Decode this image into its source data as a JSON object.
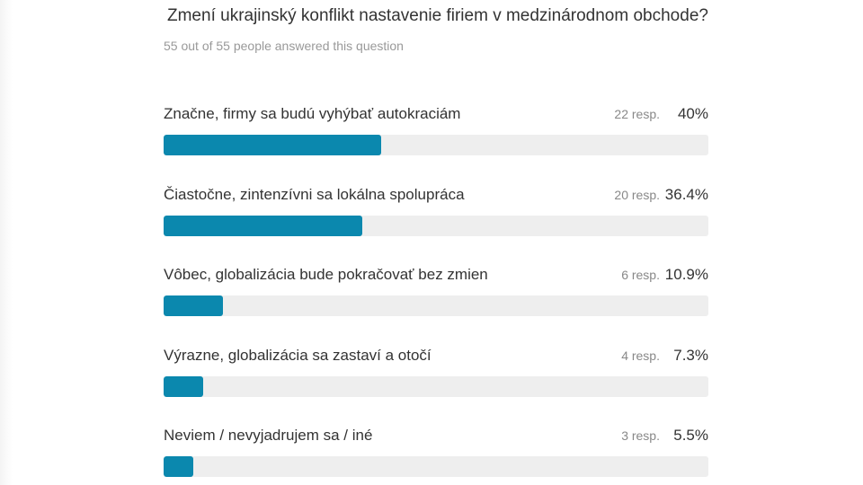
{
  "poll": {
    "question": "Zmení ukrajinský konflikt nastavenie firiem v medzinárodnom obchode?",
    "answered_text": "55 out of 55 people answered this question",
    "bar_color": "#0b88ae"
  },
  "chart_data": {
    "type": "bar",
    "orientation": "horizontal",
    "title": "Zmení ukrajinský konflikt nastavenie firiem v medzinárodnom obchode?",
    "categories": [
      "Značne, firmy sa budú vyhýbať autokraciám",
      "Čiastočne, zintenzívni sa lokálna spolupráca",
      "Vôbec, globalizácia bude pokračovať bez zmien",
      "Výrazne, globalizácia sa zastaví a otočí",
      "Neviem / nevyjadrujem sa / iné"
    ],
    "values": [
      40,
      36.4,
      10.9,
      7.3,
      5.5
    ],
    "value_labels": [
      "40%",
      "36.4%",
      "10.9%",
      "7.3%",
      "5.5%"
    ],
    "responses": [
      "22 resp.",
      "20 resp.",
      "6 resp.",
      "4 resp.",
      "3 resp."
    ],
    "xlim": [
      0,
      100
    ],
    "grid": false
  }
}
